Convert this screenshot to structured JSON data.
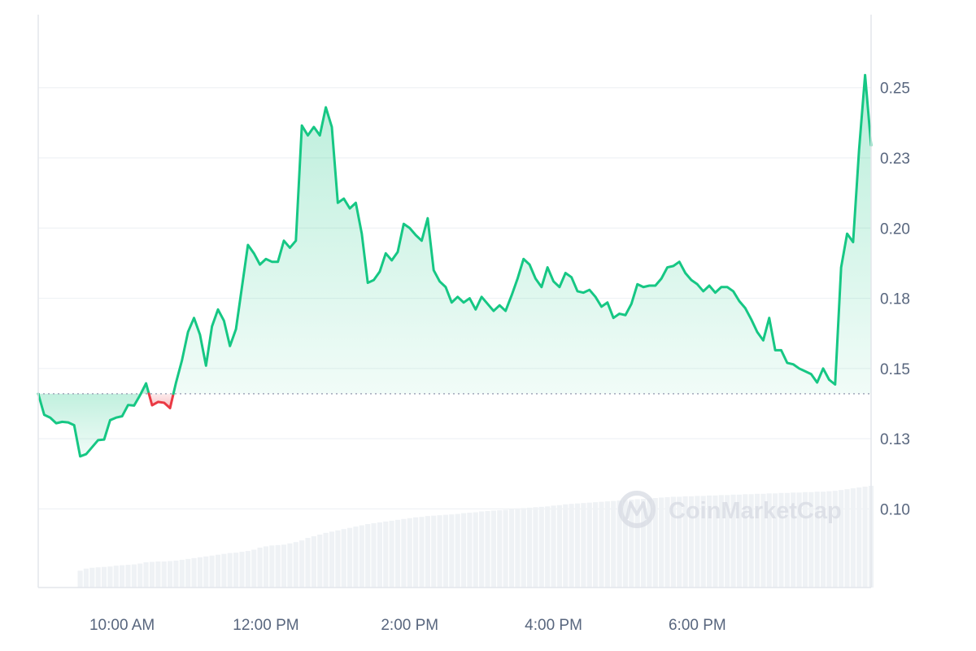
{
  "chart_data": {
    "type": "area",
    "watermark": "CoinMarketCap",
    "baseline": 0.141,
    "ylim": [
      0.072,
      0.276
    ],
    "y_ticks": [
      {
        "value": 0.1,
        "label": "0.10"
      },
      {
        "value": 0.125,
        "label": "0.13"
      },
      {
        "value": 0.15,
        "label": "0.15"
      },
      {
        "value": 0.175,
        "label": "0.18"
      },
      {
        "value": 0.2,
        "label": "0.20"
      },
      {
        "value": 0.225,
        "label": "0.23"
      },
      {
        "value": 0.25,
        "label": "0.25"
      }
    ],
    "x_domain": [
      "08:50",
      "20:25"
    ],
    "x_ticks": [
      {
        "time": "10:00",
        "label": "10:00 AM"
      },
      {
        "time": "12:00",
        "label": "12:00 PM"
      },
      {
        "time": "14:00",
        "label": "2:00 PM"
      },
      {
        "time": "16:00",
        "label": "4:00 PM"
      },
      {
        "time": "18:00",
        "label": "6:00 PM"
      }
    ],
    "colors": {
      "up": "#16c784",
      "down": "#ea3943",
      "up_fill": "#16c784",
      "down_fill": "#ea3943",
      "volume": "#eff2f5",
      "grid": "#eff2f5",
      "axis": "#e3e6eb",
      "baseline": "#a1a7bb"
    },
    "series": [
      {
        "x": [
          "08:50",
          "08:55",
          "09:00",
          "09:05",
          "09:10",
          "09:15",
          "09:20",
          "09:25",
          "09:30",
          "09:35",
          "09:40",
          "09:45",
          "09:50",
          "09:55",
          "10:00",
          "10:05",
          "10:10",
          "10:15",
          "10:20",
          "10:25",
          "10:30",
          "10:35",
          "10:40",
          "10:45",
          "10:50",
          "10:55",
          "11:00",
          "11:05",
          "11:10",
          "11:15",
          "11:20",
          "11:25",
          "11:30",
          "11:35",
          "11:40",
          "11:45",
          "11:50",
          "11:55",
          "12:00",
          "12:05",
          "12:10",
          "12:15",
          "12:20",
          "12:25",
          "12:30",
          "12:35",
          "12:40",
          "12:45",
          "12:50",
          "12:55",
          "13:00",
          "13:05",
          "13:10",
          "13:15",
          "13:20",
          "13:25",
          "13:30",
          "13:35",
          "13:40",
          "13:45",
          "13:50",
          "13:55",
          "14:00",
          "14:05",
          "14:10",
          "14:15",
          "14:20",
          "14:25",
          "14:30",
          "14:35",
          "14:40",
          "14:45",
          "14:50",
          "14:55",
          "15:00",
          "15:05",
          "15:10",
          "15:15",
          "15:20",
          "15:25",
          "15:30",
          "15:35",
          "15:40",
          "15:45",
          "15:50",
          "15:55",
          "16:00",
          "16:05",
          "16:10",
          "16:15",
          "16:20",
          "16:25",
          "16:30",
          "16:35",
          "16:40",
          "16:45",
          "16:50",
          "16:55",
          "17:00",
          "17:05",
          "17:10",
          "17:15",
          "17:20",
          "17:25",
          "17:30",
          "17:35",
          "17:40",
          "17:45",
          "17:50",
          "17:55",
          "18:00",
          "18:05",
          "18:10",
          "18:15",
          "18:20",
          "18:25",
          "18:30",
          "18:35",
          "18:40",
          "18:45",
          "18:50",
          "18:55",
          "19:00",
          "19:05",
          "19:10",
          "19:15",
          "19:20",
          "19:25",
          "19:30",
          "19:35",
          "19:40",
          "19:45",
          "19:50",
          "19:55",
          "20:00",
          "20:05",
          "20:10",
          "20:15",
          "20:20",
          "20:25"
        ],
        "values": [
          0.141,
          0.1335,
          0.1325,
          0.1305,
          0.131,
          0.1308,
          0.1298,
          0.1187,
          0.1195,
          0.122,
          0.1245,
          0.1247,
          0.1316,
          0.1325,
          0.133,
          0.137,
          0.1368,
          0.1405,
          0.1447,
          0.1369,
          0.1381,
          0.1378,
          0.1359,
          0.145,
          0.153,
          0.163,
          0.168,
          0.162,
          0.151,
          0.165,
          0.171,
          0.167,
          0.158,
          0.164,
          0.179,
          0.194,
          0.191,
          0.187,
          0.189,
          0.188,
          0.188,
          0.1955,
          0.193,
          0.1955,
          0.2365,
          0.233,
          0.236,
          0.233,
          0.243,
          0.236,
          0.209,
          0.2105,
          0.207,
          0.209,
          0.198,
          0.1805,
          0.1815,
          0.1845,
          0.191,
          0.1885,
          0.1915,
          0.2015,
          0.2,
          0.1975,
          0.1955,
          0.2035,
          0.185,
          0.181,
          0.179,
          0.1735,
          0.1755,
          0.1735,
          0.175,
          0.171,
          0.1755,
          0.173,
          0.1705,
          0.1725,
          0.1705,
          0.176,
          0.182,
          0.189,
          0.187,
          0.182,
          0.179,
          0.186,
          0.181,
          0.179,
          0.184,
          0.1825,
          0.1775,
          0.177,
          0.178,
          0.1755,
          0.172,
          0.1735,
          0.168,
          0.1695,
          0.169,
          0.173,
          0.18,
          0.179,
          0.1795,
          0.1795,
          0.182,
          0.186,
          0.1865,
          0.188,
          0.184,
          0.1815,
          0.18,
          0.1775,
          0.1795,
          0.177,
          0.179,
          0.179,
          0.1775,
          0.174,
          0.1715,
          0.1675,
          0.163,
          0.16,
          0.168,
          0.1565,
          0.1565,
          0.152,
          0.1515,
          0.15,
          0.149,
          0.148,
          0.145,
          0.15,
          0.146,
          0.1443,
          0.186,
          0.198,
          0.195,
          0.228,
          0.2545,
          0.2295
        ],
        "volume": [
          null,
          null,
          null,
          null,
          null,
          null,
          null,
          0.004,
          0.0045,
          0.0047,
          0.0048,
          0.0049,
          0.005,
          0.0052,
          0.0053,
          0.0054,
          0.0055,
          0.0057,
          0.006,
          0.0061,
          0.0062,
          0.0062,
          0.0063,
          0.0064,
          0.0066,
          0.0068,
          0.007,
          0.0072,
          0.0074,
          0.0076,
          0.0078,
          0.008,
          0.0082,
          0.0083,
          0.0085,
          0.0087,
          0.009,
          0.0095,
          0.0098,
          0.01,
          0.0101,
          0.0102,
          0.0105,
          0.0108,
          0.0112,
          0.0118,
          0.0122,
          0.0126,
          0.013,
          0.0133,
          0.0136,
          0.0139,
          0.0142,
          0.0145,
          0.0148,
          0.0151,
          0.0153,
          0.0155,
          0.0157,
          0.0159,
          0.0161,
          0.0163,
          0.0165,
          0.0167,
          0.0168,
          0.017,
          0.0171,
          0.0172,
          0.0173,
          0.0174,
          0.0175,
          0.0177,
          0.0178,
          0.0179,
          0.0181,
          0.0182,
          0.0183,
          0.0184,
          0.0185,
          0.0187,
          0.0188,
          0.0189,
          0.019,
          0.0191,
          0.0192,
          0.0193,
          0.0195,
          0.0196,
          0.0198,
          0.0199,
          0.02,
          0.0201,
          0.0202,
          0.0203,
          0.0204,
          0.0205,
          0.0206,
          0.0207,
          0.0208,
          0.0209,
          0.021,
          0.0211,
          0.0212,
          0.0213,
          0.0214,
          0.0215,
          0.0216,
          0.0216,
          0.0217,
          0.0217,
          0.0218,
          0.0218,
          0.0219,
          0.0219,
          0.022,
          0.022,
          0.0221,
          0.0221,
          0.0222,
          0.0222,
          0.0223,
          0.0223,
          0.0224,
          0.0224,
          0.0225,
          0.0225,
          0.0226,
          0.0226,
          0.0227,
          0.0227,
          0.0228,
          0.0228,
          0.0229,
          0.023,
          0.0232,
          0.0234,
          0.0236,
          0.0238,
          0.024,
          0.0242
        ]
      }
    ]
  }
}
